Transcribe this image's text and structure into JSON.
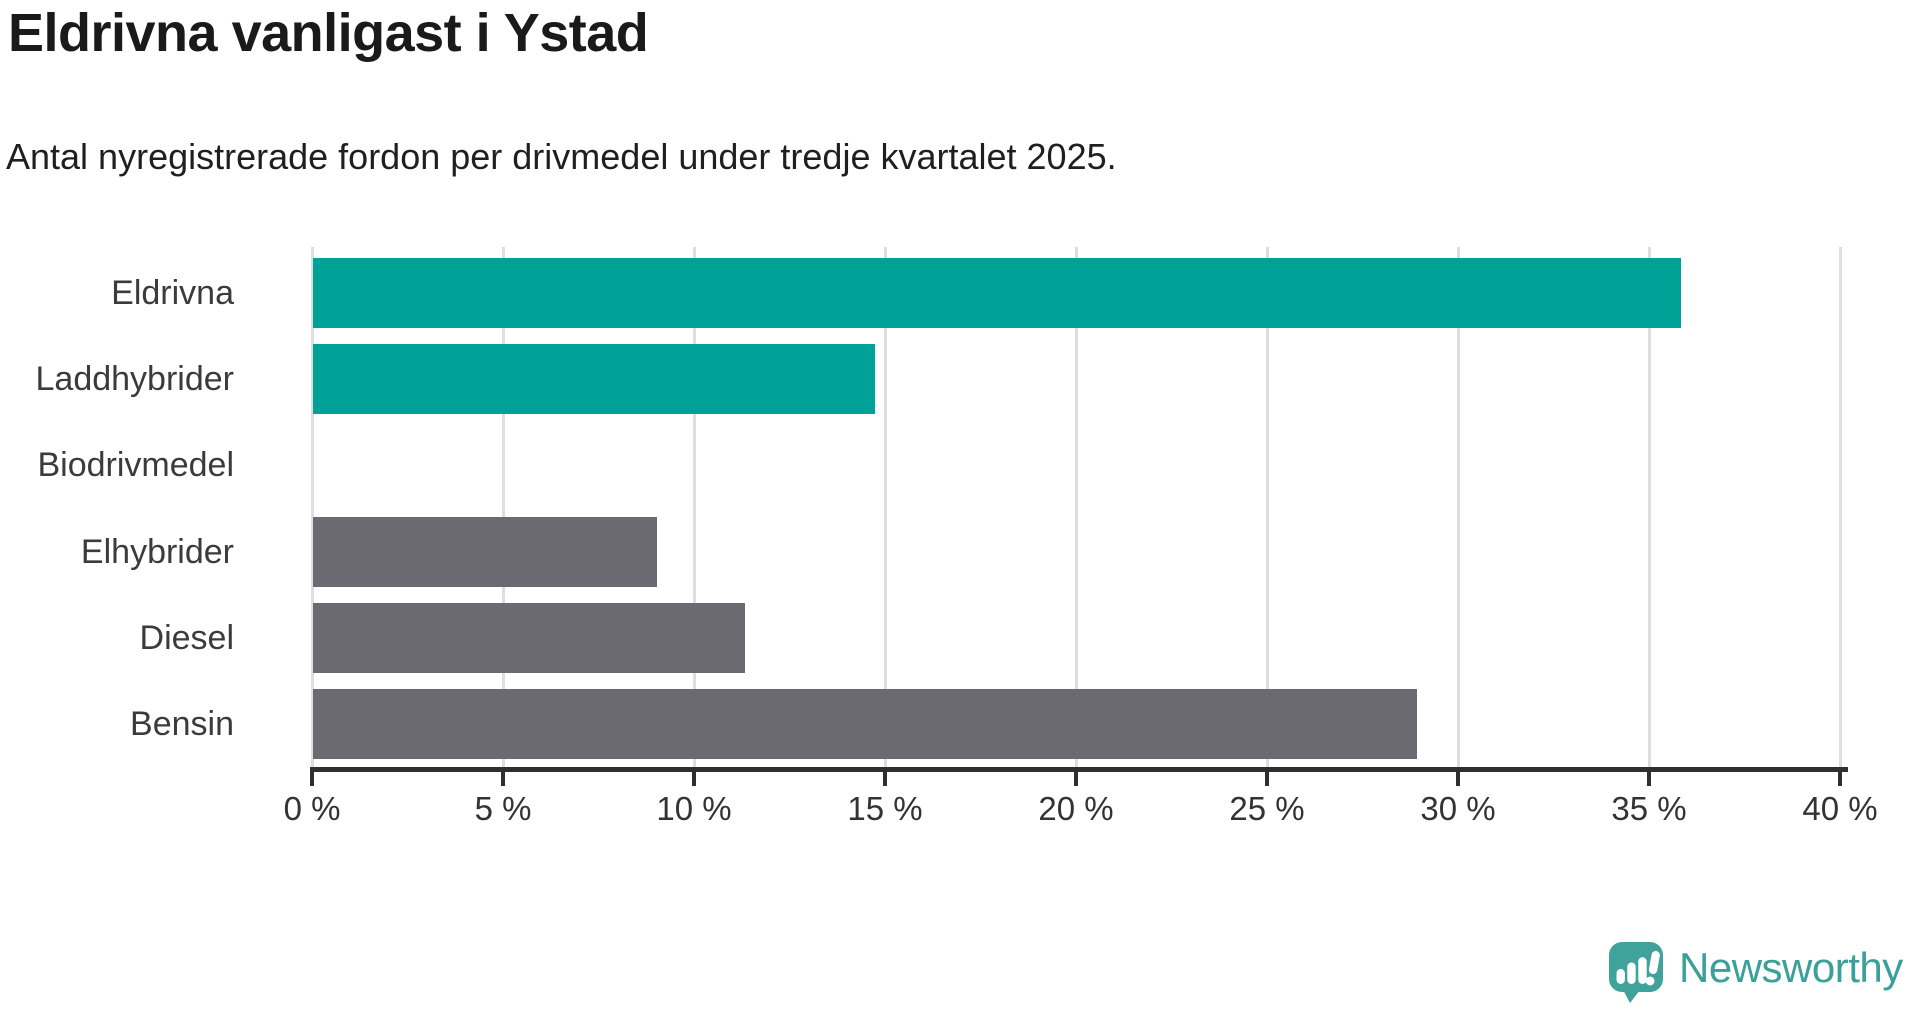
{
  "chart_data": {
    "type": "bar",
    "orientation": "horizontal",
    "title": "Eldrivna vanligast i Ystad",
    "subtitle": "Antal nyregistrerade fordon per drivmedel under tredje kvartalet 2025.",
    "categories": [
      "Eldrivna",
      "Laddhybrider",
      "Biodrivmedel",
      "Elhybrider",
      "Diesel",
      "Bensin"
    ],
    "values": [
      35.8,
      14.7,
      0,
      9.0,
      11.3,
      28.9
    ],
    "unit": "%",
    "xlim": [
      0,
      40
    ],
    "xticks": [
      "0 %",
      "5 %",
      "10 %",
      "15 %",
      "20 %",
      "25 %",
      "30 %",
      "35 %",
      "40 %"
    ],
    "colors": [
      "#00a196",
      "#00a196",
      "#00a196",
      "#6b6a72",
      "#6b6a72",
      "#6b6a72"
    ],
    "highlight_color": "#00a196",
    "muted_color": "#6b6a72",
    "grid": "vertical",
    "legend": "none"
  },
  "logo": {
    "text": "Newsworthy",
    "icon": "newsworthy-speech-bubble-chart-icon",
    "color": "#3ba099",
    "icon_color": "#3fa29b"
  }
}
